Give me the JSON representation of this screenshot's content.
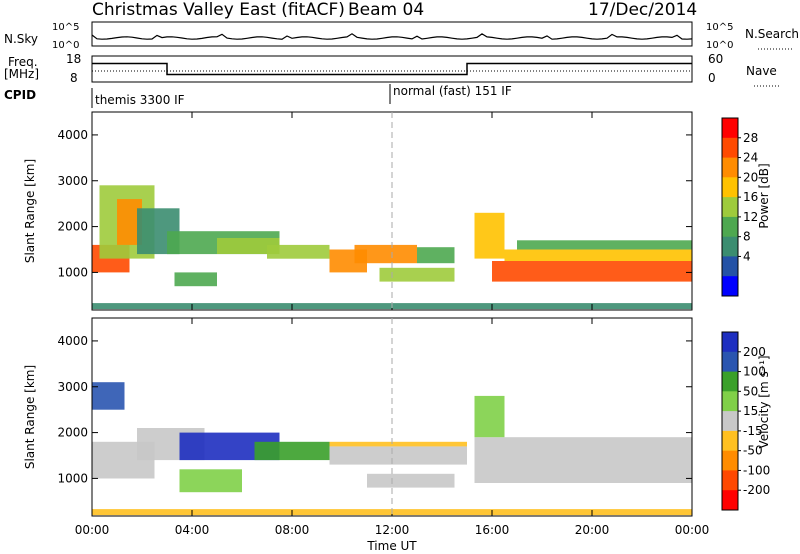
{
  "header": {
    "title": "Christmas Valley East (fitACF)",
    "beam": "Beam 04",
    "date": "17/Dec/2014"
  },
  "top_panels": {
    "nsky_label": "N.Sky",
    "nsearch_label": "N.Search",
    "nsky_ticks": [
      "10^5",
      "10^0"
    ],
    "nsearch_ticks": [
      "10^5",
      "10^0"
    ],
    "freq_label_1": "Freq.",
    "freq_label_2": "[MHz]",
    "freq_ticks": [
      "18",
      "8"
    ],
    "nave_label": "Nave",
    "nave_ticks": [
      "60",
      "0"
    ],
    "cpid_label": "CPID",
    "cpid_segments": [
      {
        "name": "themis 3300 IF",
        "start_hour": 0
      },
      {
        "name": "normal (fast) 151 IF",
        "start_hour": 12
      }
    ]
  },
  "axes": {
    "ylabel": "Slant Range [km]",
    "xlabel": "Time UT",
    "y_ticks": [
      "4000",
      "3000",
      "2000",
      "1000"
    ],
    "x_ticks": [
      "00:00",
      "04:00",
      "08:00",
      "12:00",
      "16:00",
      "20:00",
      "00:00"
    ]
  },
  "power_scale": {
    "label": "Power [dB]",
    "ticks": [
      "28",
      "24",
      "20",
      "16",
      "12",
      "8",
      "4"
    ],
    "colors": [
      "#ff0000",
      "#ff4a00",
      "#ff8c00",
      "#ffc200",
      "#9ecb3c",
      "#4ea850",
      "#3b8d70",
      "#2452a6",
      "#0000ff"
    ]
  },
  "velocity_scale": {
    "label": "Velocity [m s⁻¹]",
    "ticks": [
      "200",
      "100",
      "50",
      "15",
      "-15",
      "-50",
      "-100",
      "-200"
    ],
    "colors": [
      "#1e2fc0",
      "#2a55b0",
      "#3aa02a",
      "#80d048",
      "#c8c8c8",
      "#ffc020",
      "#ff8c00",
      "#ff4800",
      "#ff0000"
    ]
  },
  "chart_data": {
    "type": "heatmap",
    "title": "Christmas Valley East (fitACF)",
    "subtitle": "Beam 04  17/Dec/2014",
    "xlabel": "Time UT",
    "ylabel": "Slant Range [km]",
    "xlim": [
      0,
      24
    ],
    "ylim": [
      180,
      4500
    ],
    "panels": [
      {
        "name": "Power",
        "unit": "dB",
        "scale": [
          0,
          30
        ],
        "regions": [
          {
            "t": [
              0.0,
              1.5
            ],
            "r": [
              1000,
              1600
            ],
            "value": 26
          },
          {
            "t": [
              0.3,
              2.5
            ],
            "r": [
              1300,
              2900
            ],
            "value": 14
          },
          {
            "t": [
              1.0,
              2.0
            ],
            "r": [
              1600,
              2600
            ],
            "value": 22
          },
          {
            "t": [
              1.8,
              3.5
            ],
            "r": [
              1400,
              2400
            ],
            "value": 8
          },
          {
            "t": [
              3.3,
              5.0
            ],
            "r": [
              700,
              1000
            ],
            "value": 12
          },
          {
            "t": [
              3.0,
              7.5
            ],
            "r": [
              1400,
              1900
            ],
            "value": 10
          },
          {
            "t": [
              5.0,
              7.5
            ],
            "r": [
              1400,
              1750
            ],
            "value": 16
          },
          {
            "t": [
              7.0,
              9.5
            ],
            "r": [
              1300,
              1600
            ],
            "value": 14
          },
          {
            "t": [
              9.5,
              11.0
            ],
            "r": [
              1000,
              1500
            ],
            "value": 22
          },
          {
            "t": [
              10.5,
              13.0
            ],
            "r": [
              1200,
              1600
            ],
            "value": 24
          },
          {
            "t": [
              11.5,
              14.5
            ],
            "r": [
              800,
              1100
            ],
            "value": 14
          },
          {
            "t": [
              13.0,
              14.5
            ],
            "r": [
              1200,
              1550
            ],
            "value": 10
          },
          {
            "t": [
              15.3,
              16.5
            ],
            "r": [
              1300,
              2300
            ],
            "value": 18
          },
          {
            "t": [
              16.0,
              24.0
            ],
            "r": [
              800,
              1250
            ],
            "value": 28
          },
          {
            "t": [
              16.5,
              24.0
            ],
            "r": [
              1250,
              1500
            ],
            "value": 18
          },
          {
            "t": [
              17.0,
              24.0
            ],
            "r": [
              1500,
              1700
            ],
            "value": 10
          },
          {
            "t": [
              0.0,
              24.0
            ],
            "r": [
              200,
              330
            ],
            "value": 8
          }
        ]
      },
      {
        "name": "Velocity",
        "unit": "m s-1",
        "scale": [
          -200,
          200
        ],
        "regions": [
          {
            "t": [
              0.0,
              1.3
            ],
            "r": [
              2500,
              3100
            ],
            "value": 150
          },
          {
            "t": [
              0.0,
              2.5
            ],
            "r": [
              1000,
              1800
            ],
            "value": 0
          },
          {
            "t": [
              1.8,
              4.5
            ],
            "r": [
              1400,
              2100
            ],
            "value": 0
          },
          {
            "t": [
              3.5,
              7.5
            ],
            "r": [
              1400,
              2000
            ],
            "value": 180
          },
          {
            "t": [
              3.5,
              6.0
            ],
            "r": [
              700,
              1200
            ],
            "value": 40
          },
          {
            "t": [
              6.5,
              9.5
            ],
            "r": [
              1400,
              1800
            ],
            "value": 80
          },
          {
            "t": [
              9.5,
              15.0
            ],
            "r": [
              1300,
              1700
            ],
            "value": 0
          },
          {
            "t": [
              9.5,
              15.0
            ],
            "r": [
              1700,
              1800
            ],
            "value": -40
          },
          {
            "t": [
              11.0,
              14.5
            ],
            "r": [
              800,
              1100
            ],
            "value": 0
          },
          {
            "t": [
              15.3,
              24.0
            ],
            "r": [
              900,
              1900
            ],
            "value": 0
          },
          {
            "t": [
              15.3,
              16.5
            ],
            "r": [
              1900,
              2800
            ],
            "value": 60
          },
          {
            "t": [
              0.0,
              24.0
            ],
            "r": [
              200,
              330
            ],
            "value": -40
          }
        ]
      }
    ],
    "frequency_mhz": [
      {
        "t": [
          0,
          3
        ],
        "value": 15.5
      },
      {
        "t": [
          3,
          15
        ],
        "value": 10.5
      },
      {
        "t": [
          15,
          24
        ],
        "value": 15.5
      }
    ],
    "grid": false
  }
}
